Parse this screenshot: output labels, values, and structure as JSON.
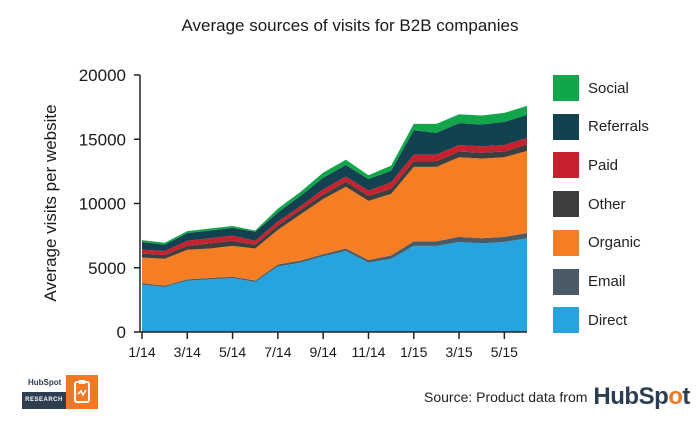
{
  "chart_data": {
    "type": "area",
    "stacked": true,
    "title": "Average sources of visits for B2B companies",
    "ylabel": "Average visits per website",
    "xlabel": "",
    "ylim": [
      0,
      20000
    ],
    "yticks": [
      "0",
      "5000",
      "10000",
      "15000",
      "20000"
    ],
    "x": [
      "1/14",
      "2/14",
      "3/14",
      "4/14",
      "5/14",
      "6/14",
      "7/14",
      "8/14",
      "9/14",
      "10/14",
      "11/14",
      "12/14",
      "1/15",
      "2/15",
      "3/15",
      "4/15",
      "5/15",
      "6/15"
    ],
    "xtick_labels": [
      "1/14",
      "3/14",
      "5/14",
      "7/14",
      "9/14",
      "11/14",
      "1/15",
      "3/15",
      "5/15"
    ],
    "legend_position": "right",
    "series": [
      {
        "name": "Direct",
        "color": "#27a3dd",
        "values": [
          3700,
          3500,
          4000,
          4100,
          4200,
          3900,
          5100,
          5400,
          5900,
          6300,
          5400,
          5700,
          6700,
          6700,
          7000,
          6900,
          7000,
          7300
        ]
      },
      {
        "name": "Email",
        "color": "#4a5a66",
        "values": [
          100,
          100,
          100,
          100,
          100,
          100,
          150,
          150,
          150,
          200,
          200,
          250,
          350,
          350,
          400,
          400,
          400,
          400
        ]
      },
      {
        "name": "Organic",
        "color": "#f57d24",
        "values": [
          2000,
          2100,
          2300,
          2300,
          2400,
          2500,
          2700,
          3600,
          4300,
          4800,
          4600,
          4800,
          5800,
          5800,
          6200,
          6200,
          6200,
          6400
        ]
      },
      {
        "name": "Other",
        "color": "#3e3e3e",
        "values": [
          300,
          300,
          300,
          400,
          400,
          300,
          350,
          350,
          350,
          400,
          400,
          400,
          450,
          450,
          450,
          450,
          450,
          500
        ]
      },
      {
        "name": "Paid",
        "color": "#c7202e",
        "values": [
          300,
          300,
          400,
          400,
          400,
          300,
          300,
          300,
          400,
          400,
          400,
          500,
          500,
          500,
          500,
          500,
          500,
          500
        ]
      },
      {
        "name": "Referrals",
        "color": "#12424f",
        "values": [
          600,
          500,
          600,
          600,
          600,
          700,
          700,
          800,
          900,
          900,
          900,
          900,
          1900,
          1700,
          1700,
          1700,
          1800,
          1800
        ]
      },
      {
        "name": "Social",
        "color": "#12a64b",
        "values": [
          150,
          150,
          150,
          150,
          150,
          100,
          300,
          300,
          400,
          400,
          300,
          400,
          500,
          700,
          700,
          700,
          700,
          700
        ]
      }
    ]
  },
  "source": {
    "label": "Source: Product data from",
    "brand_prefix": "HubSp",
    "brand_o": "o",
    "brand_suffix": "t"
  },
  "badge": {
    "brand": "HubSpot",
    "label": "RESEARCH"
  }
}
